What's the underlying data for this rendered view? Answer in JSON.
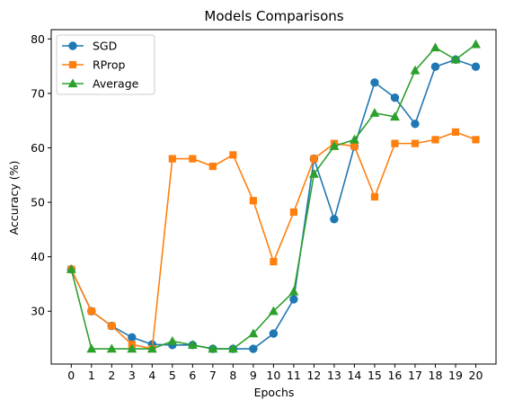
{
  "chart_data": {
    "type": "line",
    "title": "Models Comparisons",
    "xlabel": "Epochs",
    "ylabel": "Accuracy (%)",
    "x": [
      0,
      1,
      2,
      3,
      4,
      5,
      6,
      7,
      8,
      9,
      10,
      11,
      12,
      13,
      14,
      15,
      16,
      17,
      18,
      19,
      20
    ],
    "xticks": [
      "0",
      "1",
      "2",
      "3",
      "4",
      "5",
      "6",
      "7",
      "8",
      "9",
      "10",
      "11",
      "12",
      "13",
      "14",
      "15",
      "16",
      "17",
      "18",
      "19",
      "20"
    ],
    "yticks": [
      30,
      40,
      50,
      60,
      70,
      80
    ],
    "xlim": [
      -0.99,
      21.0
    ],
    "ylim": [
      20.3,
      81.7
    ],
    "grid": false,
    "legend_position": "top-left",
    "series": [
      {
        "name": "SGD",
        "color": "#1f77b4",
        "marker": "circle",
        "values": [
          37.7,
          30.0,
          27.3,
          25.2,
          23.9,
          23.8,
          23.8,
          23.1,
          23.1,
          23.1,
          25.9,
          32.2,
          58.0,
          46.9,
          60.3,
          72.0,
          69.2,
          64.4,
          74.9,
          76.2,
          74.9
        ]
      },
      {
        "name": "RProp",
        "color": "#ff7f0e",
        "marker": "square",
        "values": [
          37.7,
          30.0,
          27.3,
          23.9,
          23.1,
          58.0,
          58.0,
          56.6,
          58.7,
          50.3,
          39.1,
          48.2,
          58.0,
          60.8,
          60.3,
          51.0,
          60.8,
          60.8,
          61.5,
          62.9,
          61.5
        ]
      },
      {
        "name": "Average",
        "color": "#2ca02c",
        "marker": "triangle",
        "values": [
          37.7,
          23.1,
          23.1,
          23.1,
          23.1,
          24.5,
          23.8,
          23.1,
          23.1,
          25.9,
          30.0,
          33.6,
          55.2,
          60.3,
          61.5,
          66.4,
          65.7,
          74.2,
          78.4,
          76.2,
          79.0
        ]
      }
    ]
  }
}
